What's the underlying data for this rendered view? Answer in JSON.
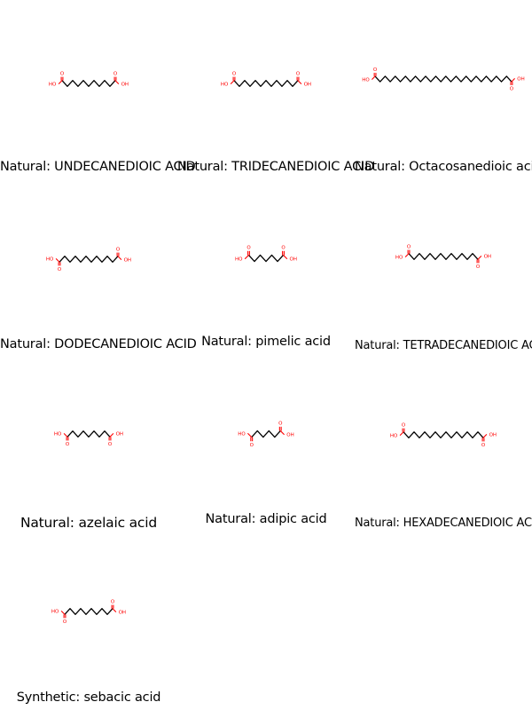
{
  "colors": {
    "bond": "#000000",
    "heteroatom": "#ff0000"
  },
  "atom_labels": {
    "hydroxyl": "HO",
    "hydroxyl_right": "OH",
    "oxygen": "O"
  },
  "molecules": [
    {
      "label": "Natural: UNDECANEDIOIC ACID",
      "chain_carbons": 11
    },
    {
      "label": "Natural: TRIDECANEDIOIC ACID",
      "chain_carbons": 13
    },
    {
      "label": "Natural: Octacosanedioic acid",
      "chain_carbons": 28
    },
    {
      "label": "Natural: DODECANEDIOIC ACID",
      "chain_carbons": 12
    },
    {
      "label": "Natural: pimelic acid",
      "chain_carbons": 7
    },
    {
      "label": "Natural: TETRADECANEDIOIC ACID",
      "chain_carbons": 14
    },
    {
      "label": "Natural: azelaic acid",
      "chain_carbons": 9
    },
    {
      "label": "Natural: adipic acid",
      "chain_carbons": 6
    },
    {
      "label": "Natural: HEXADECANEDIOIC ACID",
      "chain_carbons": 16
    },
    {
      "label": "Synthetic: sebacic acid",
      "chain_carbons": 10
    }
  ]
}
